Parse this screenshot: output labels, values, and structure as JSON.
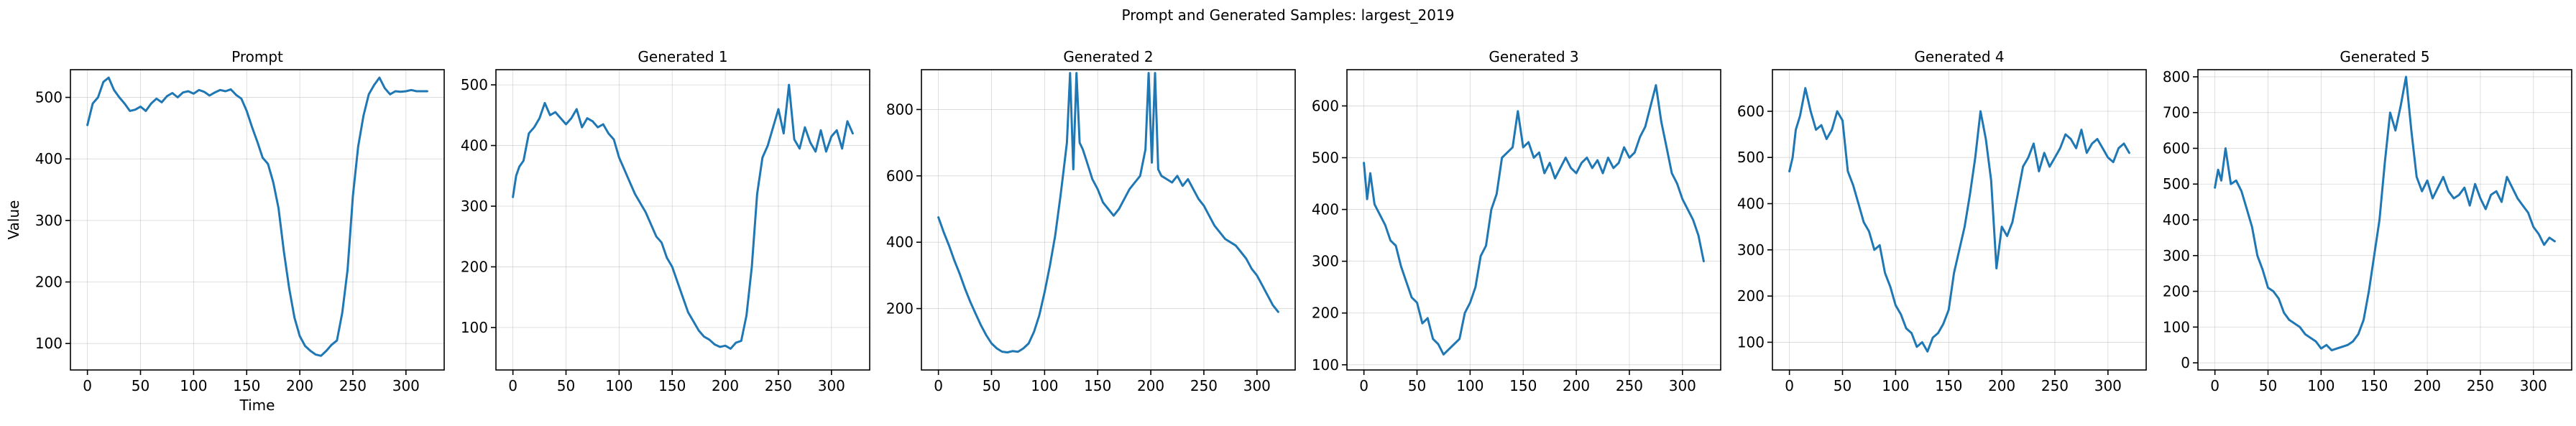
{
  "figure": {
    "suptitle": "Prompt and Generated Samples: largest_2019",
    "line_color": "#1f77b4"
  },
  "chart_data": [
    {
      "type": "line",
      "title": "Prompt",
      "xlabel": "Time",
      "ylabel": "Value",
      "xlim": [
        -16,
        336
      ],
      "ylim": [
        57,
        545
      ],
      "grid": true,
      "x_ticks": [
        0,
        50,
        100,
        150,
        200,
        250,
        300
      ],
      "y_ticks": [
        100,
        200,
        300,
        400,
        500
      ],
      "series": [
        {
          "x": [
            0,
            5,
            10,
            15,
            20,
            25,
            30,
            35,
            40,
            45,
            50,
            55,
            60,
            65,
            70,
            75,
            80,
            85,
            90,
            95,
            100,
            105,
            110,
            115,
            120,
            125,
            130,
            135,
            140,
            145,
            150,
            155,
            160,
            165,
            170,
            175,
            180,
            185,
            190,
            195,
            200,
            205,
            210,
            215,
            220,
            225,
            230,
            235,
            240,
            245,
            250,
            255,
            260,
            265,
            270,
            275,
            280,
            285,
            290,
            295,
            300,
            305,
            310,
            315,
            320
          ],
          "y": [
            455,
            490,
            500,
            525,
            532,
            512,
            500,
            490,
            478,
            480,
            485,
            478,
            490,
            498,
            492,
            502,
            507,
            500,
            508,
            510,
            506,
            512,
            509,
            503,
            508,
            512,
            510,
            513,
            504,
            498,
            478,
            452,
            428,
            402,
            392,
            362,
            320,
            250,
            190,
            142,
            112,
            96,
            88,
            82,
            80,
            88,
            98,
            105,
            150,
            220,
            340,
            420,
            470,
            505,
            520,
            532,
            515,
            505,
            510,
            509,
            510,
            512,
            510,
            510,
            510
          ]
        }
      ]
    },
    {
      "type": "line",
      "title": "Generated 1",
      "xlabel": "",
      "ylabel": "",
      "xlim": [
        -16,
        336
      ],
      "ylim": [
        30,
        525
      ],
      "grid": true,
      "x_ticks": [
        0,
        50,
        100,
        150,
        200,
        250,
        300
      ],
      "y_ticks": [
        100,
        200,
        300,
        400,
        500
      ],
      "series": [
        {
          "x": [
            0,
            3,
            6,
            10,
            15,
            20,
            25,
            30,
            35,
            40,
            45,
            50,
            55,
            60,
            65,
            70,
            75,
            80,
            85,
            90,
            95,
            100,
            105,
            110,
            115,
            120,
            125,
            130,
            135,
            140,
            145,
            150,
            155,
            160,
            165,
            170,
            175,
            180,
            185,
            190,
            195,
            200,
            205,
            210,
            215,
            220,
            225,
            230,
            235,
            240,
            245,
            250,
            255,
            260,
            265,
            270,
            275,
            280,
            285,
            290,
            295,
            300,
            305,
            310,
            315,
            320
          ],
          "y": [
            315,
            350,
            365,
            375,
            420,
            430,
            445,
            470,
            450,
            455,
            445,
            435,
            445,
            460,
            430,
            445,
            440,
            430,
            435,
            420,
            410,
            380,
            360,
            340,
            320,
            305,
            290,
            270,
            250,
            240,
            215,
            200,
            175,
            150,
            125,
            110,
            95,
            85,
            80,
            72,
            68,
            70,
            65,
            75,
            78,
            120,
            200,
            320,
            380,
            400,
            430,
            460,
            420,
            500,
            410,
            395,
            430,
            405,
            390,
            425,
            390,
            415,
            425,
            395,
            440,
            420
          ]
        }
      ]
    },
    {
      "type": "line",
      "title": "Generated 2",
      "xlabel": "",
      "ylabel": "",
      "xlim": [
        -16,
        336
      ],
      "ylim": [
        15,
        920
      ],
      "grid": true,
      "x_ticks": [
        0,
        50,
        100,
        150,
        200,
        250,
        300
      ],
      "y_ticks": [
        200,
        400,
        600,
        800
      ],
      "series": [
        {
          "x": [
            0,
            5,
            10,
            15,
            20,
            25,
            30,
            35,
            40,
            45,
            50,
            55,
            60,
            65,
            70,
            75,
            80,
            85,
            90,
            95,
            100,
            105,
            110,
            115,
            118,
            121,
            124,
            127,
            130,
            133,
            136,
            140,
            145,
            150,
            155,
            160,
            165,
            170,
            175,
            180,
            185,
            190,
            195,
            198,
            201,
            204,
            207,
            210,
            215,
            220,
            225,
            230,
            235,
            240,
            245,
            250,
            255,
            260,
            265,
            270,
            275,
            280,
            285,
            290,
            295,
            300,
            305,
            310,
            315,
            320
          ],
          "y": [
            475,
            430,
            390,
            345,
            305,
            260,
            220,
            185,
            150,
            120,
            95,
            80,
            70,
            68,
            72,
            70,
            80,
            95,
            130,
            180,
            250,
            330,
            420,
            540,
            620,
            700,
            910,
            620,
            910,
            700,
            680,
            640,
            590,
            560,
            520,
            500,
            480,
            500,
            530,
            560,
            580,
            600,
            680,
            910,
            640,
            910,
            620,
            600,
            590,
            580,
            600,
            570,
            590,
            560,
            530,
            510,
            480,
            450,
            430,
            410,
            400,
            390,
            370,
            350,
            320,
            300,
            270,
            240,
            210,
            190
          ]
        }
      ]
    },
    {
      "type": "line",
      "title": "Generated 3",
      "xlabel": "",
      "ylabel": "",
      "xlim": [
        -16,
        336
      ],
      "ylim": [
        90,
        670
      ],
      "grid": true,
      "x_ticks": [
        0,
        50,
        100,
        150,
        200,
        250,
        300
      ],
      "y_ticks": [
        100,
        200,
        300,
        400,
        500,
        600
      ],
      "series": [
        {
          "x": [
            0,
            3,
            6,
            10,
            15,
            20,
            25,
            30,
            35,
            40,
            45,
            50,
            55,
            60,
            65,
            70,
            75,
            80,
            85,
            90,
            95,
            100,
            105,
            110,
            115,
            120,
            125,
            130,
            135,
            140,
            145,
            150,
            155,
            160,
            165,
            170,
            175,
            180,
            185,
            190,
            195,
            200,
            205,
            210,
            215,
            220,
            225,
            230,
            235,
            240,
            245,
            250,
            255,
            260,
            265,
            270,
            275,
            280,
            285,
            290,
            295,
            300,
            305,
            310,
            315,
            320
          ],
          "y": [
            490,
            420,
            470,
            410,
            390,
            370,
            340,
            330,
            290,
            260,
            230,
            220,
            180,
            190,
            150,
            140,
            120,
            130,
            140,
            150,
            200,
            220,
            250,
            310,
            330,
            400,
            430,
            500,
            510,
            520,
            590,
            520,
            530,
            500,
            510,
            470,
            490,
            460,
            480,
            500,
            480,
            470,
            490,
            500,
            480,
            495,
            470,
            500,
            480,
            490,
            520,
            500,
            510,
            540,
            560,
            600,
            640,
            570,
            520,
            470,
            450,
            420,
            400,
            380,
            350,
            300
          ]
        }
      ]
    },
    {
      "type": "line",
      "title": "Generated 4",
      "xlabel": "",
      "ylabel": "",
      "xlim": [
        -16,
        336
      ],
      "ylim": [
        40,
        690
      ],
      "grid": true,
      "x_ticks": [
        0,
        50,
        100,
        150,
        200,
        250,
        300
      ],
      "y_ticks": [
        100,
        200,
        300,
        400,
        500,
        600
      ],
      "series": [
        {
          "x": [
            0,
            3,
            6,
            10,
            15,
            20,
            25,
            30,
            35,
            40,
            45,
            50,
            55,
            60,
            65,
            70,
            75,
            80,
            85,
            90,
            95,
            100,
            105,
            110,
            115,
            120,
            125,
            130,
            135,
            140,
            145,
            150,
            155,
            160,
            165,
            170,
            175,
            180,
            185,
            190,
            195,
            200,
            205,
            210,
            215,
            220,
            225,
            230,
            235,
            240,
            245,
            250,
            255,
            260,
            265,
            270,
            275,
            280,
            285,
            290,
            295,
            300,
            305,
            310,
            315,
            320
          ],
          "y": [
            470,
            500,
            560,
            590,
            650,
            600,
            560,
            570,
            540,
            560,
            600,
            580,
            470,
            440,
            400,
            360,
            340,
            300,
            310,
            250,
            220,
            180,
            160,
            130,
            120,
            90,
            100,
            80,
            110,
            120,
            140,
            170,
            250,
            300,
            350,
            420,
            500,
            600,
            540,
            450,
            260,
            350,
            330,
            360,
            420,
            480,
            500,
            530,
            470,
            510,
            480,
            500,
            520,
            550,
            540,
            520,
            560,
            510,
            530,
            540,
            520,
            500,
            490,
            520,
            530,
            510
          ]
        }
      ]
    },
    {
      "type": "line",
      "title": "Generated 5",
      "xlabel": "",
      "ylabel": "",
      "xlim": [
        -16,
        336
      ],
      "ylim": [
        -20,
        820
      ],
      "grid": true,
      "x_ticks": [
        0,
        50,
        100,
        150,
        200,
        250,
        300
      ],
      "y_ticks": [
        0,
        100,
        200,
        300,
        400,
        500,
        600,
        700,
        800
      ],
      "series": [
        {
          "x": [
            0,
            3,
            6,
            10,
            15,
            20,
            25,
            30,
            35,
            40,
            45,
            50,
            55,
            60,
            65,
            70,
            75,
            80,
            85,
            90,
            95,
            100,
            105,
            110,
            115,
            120,
            125,
            130,
            135,
            140,
            145,
            150,
            155,
            160,
            165,
            170,
            175,
            180,
            185,
            190,
            195,
            200,
            205,
            210,
            215,
            220,
            225,
            230,
            235,
            240,
            245,
            250,
            255,
            260,
            265,
            270,
            275,
            280,
            285,
            290,
            295,
            300,
            305,
            310,
            315,
            320
          ],
          "y": [
            490,
            540,
            510,
            600,
            500,
            510,
            480,
            430,
            380,
            300,
            260,
            210,
            200,
            180,
            140,
            120,
            110,
            100,
            80,
            70,
            60,
            40,
            50,
            35,
            40,
            45,
            50,
            60,
            80,
            120,
            200,
            300,
            400,
            560,
            700,
            650,
            720,
            800,
            650,
            520,
            480,
            510,
            460,
            490,
            520,
            480,
            460,
            470,
            490,
            440,
            500,
            460,
            430,
            470,
            480,
            450,
            520,
            490,
            460,
            440,
            420,
            380,
            360,
            330,
            350,
            340
          ]
        }
      ]
    }
  ]
}
